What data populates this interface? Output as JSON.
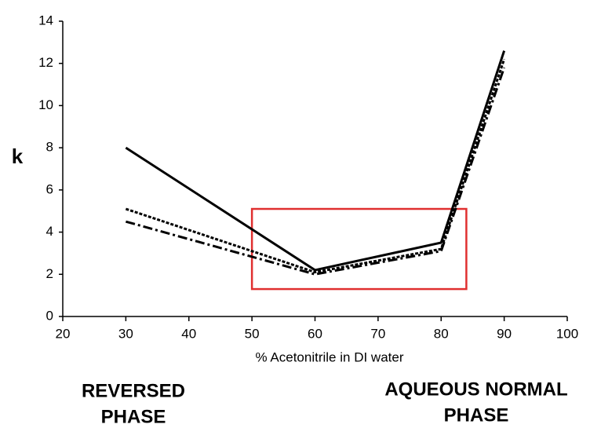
{
  "chart_data": {
    "type": "line",
    "x_label": "% Acetonitrile in DI water",
    "y_label": "k",
    "x": [
      30,
      60,
      80,
      90
    ],
    "series": [
      {
        "color": "#000000",
        "dash": "solid",
        "values": [
          8.0,
          2.2,
          3.5,
          12.6
        ]
      },
      {
        "color": "#000000",
        "dash": "dotted",
        "values": [
          5.1,
          2.1,
          3.2,
          12.2
        ]
      },
      {
        "color": "#000000",
        "dash": "dashdot",
        "values": [
          4.5,
          2.0,
          3.1,
          11.8
        ]
      }
    ],
    "xlim": [
      20,
      100
    ],
    "xticks": [
      20,
      30,
      40,
      50,
      60,
      70,
      80,
      90,
      100
    ],
    "ylim": [
      0,
      14
    ],
    "yticks": [
      0,
      2,
      4,
      6,
      8,
      10,
      12,
      14
    ],
    "grid": false,
    "highlight": {
      "color": "#e03030",
      "xlim": [
        50,
        84
      ],
      "ylim": [
        1.3,
        5.1
      ]
    },
    "annotations": [
      {
        "lines": [
          "REVERSED",
          "PHASE"
        ]
      },
      {
        "lines": [
          "AQUEOUS NORMAL",
          "PHASE"
        ]
      }
    ]
  }
}
